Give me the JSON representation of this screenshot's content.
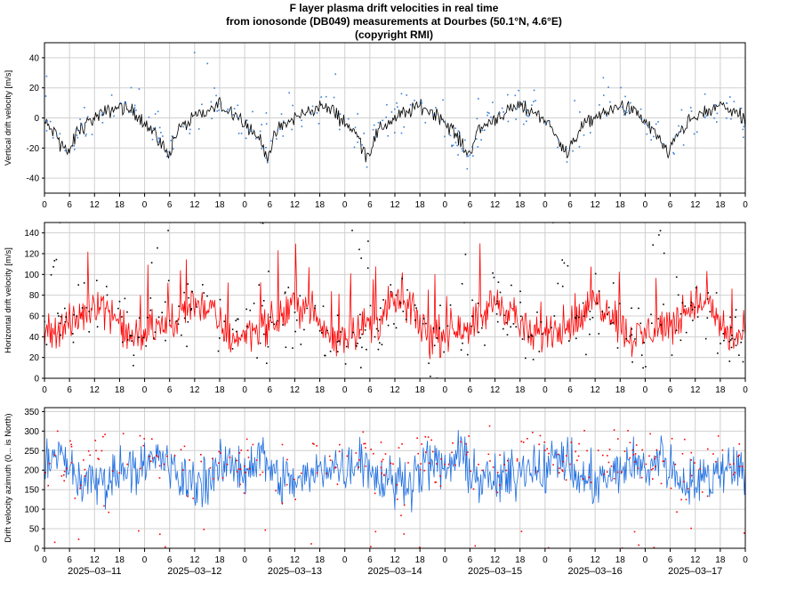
{
  "page": {
    "title_line1": "F layer plasma drift velocities in real time",
    "title_line2": "from ionosonde (DB049) measurements at Dourbes (50.1°N, 4.6°E)",
    "title_line3": "(copyright RMI)"
  },
  "colors": {
    "vertical_line": "#000000",
    "vertical_dots": "#3a7fd5",
    "horizontal_line": "#ff0000",
    "horizontal_dots": "#000000",
    "azimuth_line": "#1f6fe0",
    "azimuth_dots": "#ff0000",
    "grid": "#d0d0d0"
  },
  "chart_data": [
    {
      "type": "line",
      "ylabel": "Vertical drift velocity [m/s]",
      "ylim": [
        -50,
        50
      ],
      "yticks": [
        -40,
        -20,
        0,
        20,
        40
      ],
      "x_unit": "hour of day (UT)",
      "xlim_hours": [
        0,
        168
      ],
      "xtick_labels": [
        "0",
        "6",
        "12",
        "18",
        "0",
        "6",
        "12",
        "18",
        "0",
        "6",
        "12",
        "18",
        "0",
        "6",
        "12",
        "18",
        "0",
        "6",
        "12",
        "18",
        "0",
        "6",
        "12",
        "18",
        "0",
        "6",
        "12",
        "18",
        "0"
      ],
      "grid": true,
      "series": [
        {
          "name": "",
          "style": "line",
          "daily_profile_hours": [
            0,
            3,
            5.5,
            8,
            12,
            18,
            22,
            24
          ],
          "daily_profile_values": [
            -3,
            -12,
            -25,
            -8,
            0,
            8,
            3,
            -3
          ]
        },
        {
          "name": "",
          "style": "dots"
        }
      ]
    },
    {
      "type": "line",
      "ylabel": "Horizontal drift velocity [m/s]",
      "ylim": [
        0,
        150
      ],
      "yticks": [
        0,
        20,
        40,
        60,
        80,
        100,
        120,
        140
      ],
      "xlim_hours": [
        0,
        168
      ],
      "xtick_labels": [
        "0",
        "6",
        "12",
        "18",
        "0",
        "6",
        "12",
        "18",
        "0",
        "6",
        "12",
        "18",
        "0",
        "6",
        "12",
        "18",
        "0",
        "6",
        "12",
        "18",
        "0",
        "6",
        "12",
        "18",
        "0",
        "6",
        "12",
        "18",
        "0"
      ],
      "grid": true,
      "series": [
        {
          "name": "",
          "style": "line",
          "daily_profile_hours": [
            0,
            4,
            8,
            12,
            16,
            20,
            24
          ],
          "daily_profile_values": [
            45,
            50,
            55,
            75,
            65,
            40,
            40
          ]
        },
        {
          "name": "",
          "style": "dots"
        }
      ]
    },
    {
      "type": "line",
      "ylabel": "Drift velocity azimuth (0... is North)",
      "ylim": [
        0,
        360
      ],
      "yticks": [
        0,
        50,
        100,
        150,
        200,
        250,
        300,
        350
      ],
      "xlim_hours": [
        0,
        168
      ],
      "xtick_labels": [
        "0",
        "6",
        "12",
        "18",
        "0",
        "6",
        "12",
        "18",
        "0",
        "6",
        "12",
        "18",
        "0",
        "6",
        "12",
        "18",
        "0",
        "6",
        "12",
        "18",
        "0",
        "6",
        "12",
        "18",
        "0",
        "6",
        "12",
        "18",
        "0"
      ],
      "date_labels": [
        "2025–03–11",
        "2025–03–12",
        "2025–03–13",
        "2025–03–14",
        "2025–03–15",
        "2025–03–16",
        "2025–03–17"
      ],
      "grid": true,
      "series": [
        {
          "name": "",
          "style": "line",
          "daily_profile_hours": [
            0,
            4,
            8,
            12,
            16,
            20,
            24
          ],
          "daily_profile_values": [
            200,
            240,
            175,
            170,
            180,
            220,
            200
          ]
        },
        {
          "name": "",
          "style": "dots"
        }
      ]
    }
  ]
}
